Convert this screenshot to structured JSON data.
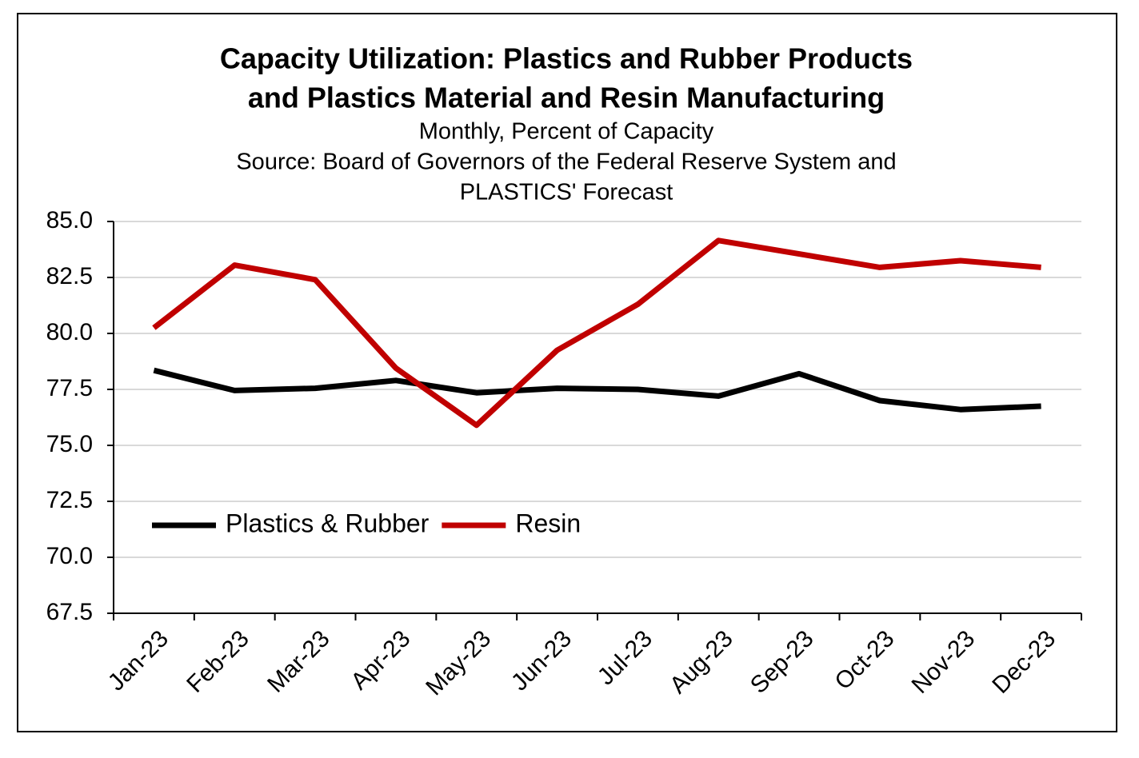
{
  "chart_data": {
    "type": "line",
    "title": [
      "Capacity Utilization:  Plastics and Rubber Products",
      "and Plastics Material and Resin Manufacturing"
    ],
    "subtitle": [
      "Monthly,  Percent of Capacity",
      "Source: Board of Governors of the Federal Reserve System and",
      "PLASTICS' Forecast"
    ],
    "categories": [
      "Jan-23",
      "Feb-23",
      "Mar-23",
      "Apr-23",
      "May-23",
      "Jun-23",
      "Jul-23",
      "Aug-23",
      "Sep-23",
      "Oct-23",
      "Nov-23",
      "Dec-23"
    ],
    "series": [
      {
        "name": "Plastics & Rubber",
        "color": "#000000",
        "values": [
          78.35,
          77.45,
          77.55,
          77.9,
          77.35,
          77.55,
          77.5,
          77.2,
          78.2,
          77.0,
          76.6,
          76.75
        ]
      },
      {
        "name": "Resin",
        "color": "#c00000",
        "values": [
          80.25,
          83.05,
          82.4,
          78.45,
          75.9,
          79.25,
          81.3,
          84.15,
          83.55,
          82.95,
          83.25,
          82.95
        ]
      }
    ],
    "ylim": [
      67.5,
      85
    ],
    "yticks": [
      {
        "value": 67.5,
        "label": "67.5"
      },
      {
        "value": 70,
        "label": "70.0"
      },
      {
        "value": 72.5,
        "label": "72.5"
      },
      {
        "value": 75,
        "label": "75.0"
      },
      {
        "value": 77.5,
        "label": "77.5"
      },
      {
        "value": 80,
        "label": "80.0"
      },
      {
        "value": 82.5,
        "label": "82.5"
      },
      {
        "value": 85,
        "label": "85.0"
      }
    ],
    "grid": true,
    "legend": "lower-left"
  }
}
